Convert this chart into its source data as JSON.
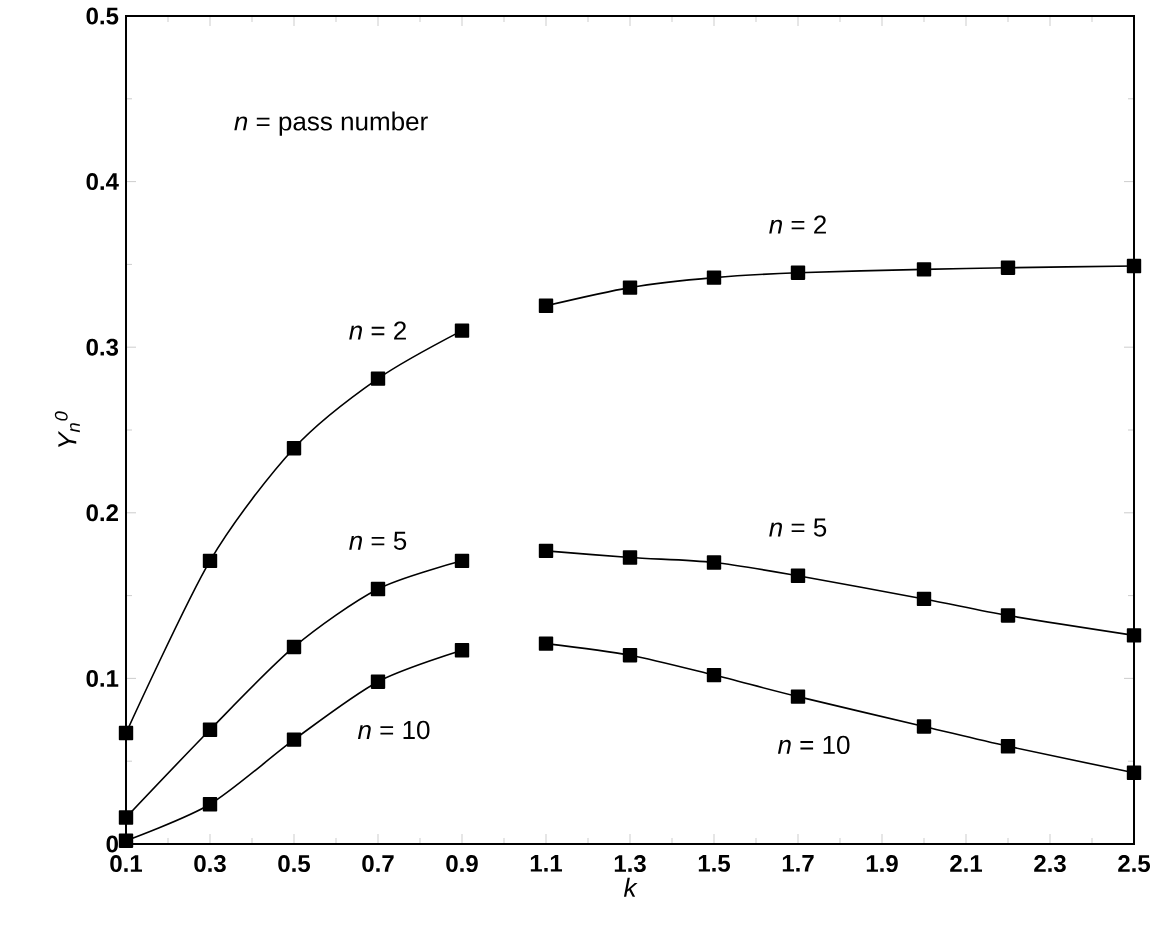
{
  "chart_data": {
    "type": "line",
    "xlabel": "k",
    "ylabel": "Y$_{n}$$^{0}$",
    "x": [
      0.1,
      0.3,
      0.5,
      0.7,
      0.9,
      1.0,
      1.1,
      1.3,
      1.5,
      1.7,
      2.0,
      2.2,
      2.5
    ],
    "series": [
      {
        "name": "*n* = 2",
        "color": "#000000",
        "values": [
          0.067,
          0.171,
          0.239,
          0.281,
          0.31,
          null,
          0.325,
          0.336,
          0.342,
          0.345,
          0.347,
          0.348,
          0.349
        ]
      },
      {
        "name": "*n* = 5",
        "color": "#000000",
        "values": [
          0.016,
          0.069,
          0.119,
          0.154,
          0.171,
          null,
          0.177,
          0.173,
          0.17,
          0.162,
          0.148,
          0.138,
          0.126
        ]
      },
      {
        "name": "*n* = 10",
        "color": "#000000",
        "values": [
          0.002,
          0.024,
          0.063,
          0.098,
          0.117,
          null,
          0.121,
          0.114,
          0.102,
          0.089,
          0.071,
          0.059,
          0.043
        ]
      }
    ],
    "xlim": [
      0.1,
      2.5
    ],
    "ylim": [
      0,
      0.5
    ],
    "xticks": [
      0.1,
      {
        "value": 0.2,
        "label": null
      },
      0.3,
      {
        "value": 0.4,
        "label": null
      },
      0.5,
      {
        "value": 0.6,
        "label": null
      },
      0.7,
      {
        "value": 0.8,
        "label": null
      },
      0.9,
      {
        "value": 1.0,
        "label": null
      },
      1.1,
      {
        "value": 1.2,
        "label": null
      },
      1.3,
      {
        "value": 1.4,
        "label": null
      },
      1.5,
      {
        "value": 1.6,
        "label": null
      },
      1.7,
      {
        "value": 1.8,
        "label": null
      },
      1.9,
      {
        "value": 2.0,
        "label": null
      },
      2.1,
      {
        "value": 2.2,
        "label": null
      },
      2.3,
      {
        "value": 2.4,
        "label": null
      },
      2.5
    ],
    "yticks": [
      0,
      {
        "value": 0.05,
        "label": null
      },
      0.1,
      {
        "value": 0.15,
        "label": null
      },
      0.2,
      {
        "value": 0.25,
        "label": null
      },
      0.3,
      {
        "value": 0.35,
        "label": null
      },
      0.4,
      {
        "value": 0.45,
        "label": null
      },
      0.5
    ],
    "annotations": [
      "*n* = pass number"
    ],
    "marker": "square",
    "line_style": "solid"
  }
}
